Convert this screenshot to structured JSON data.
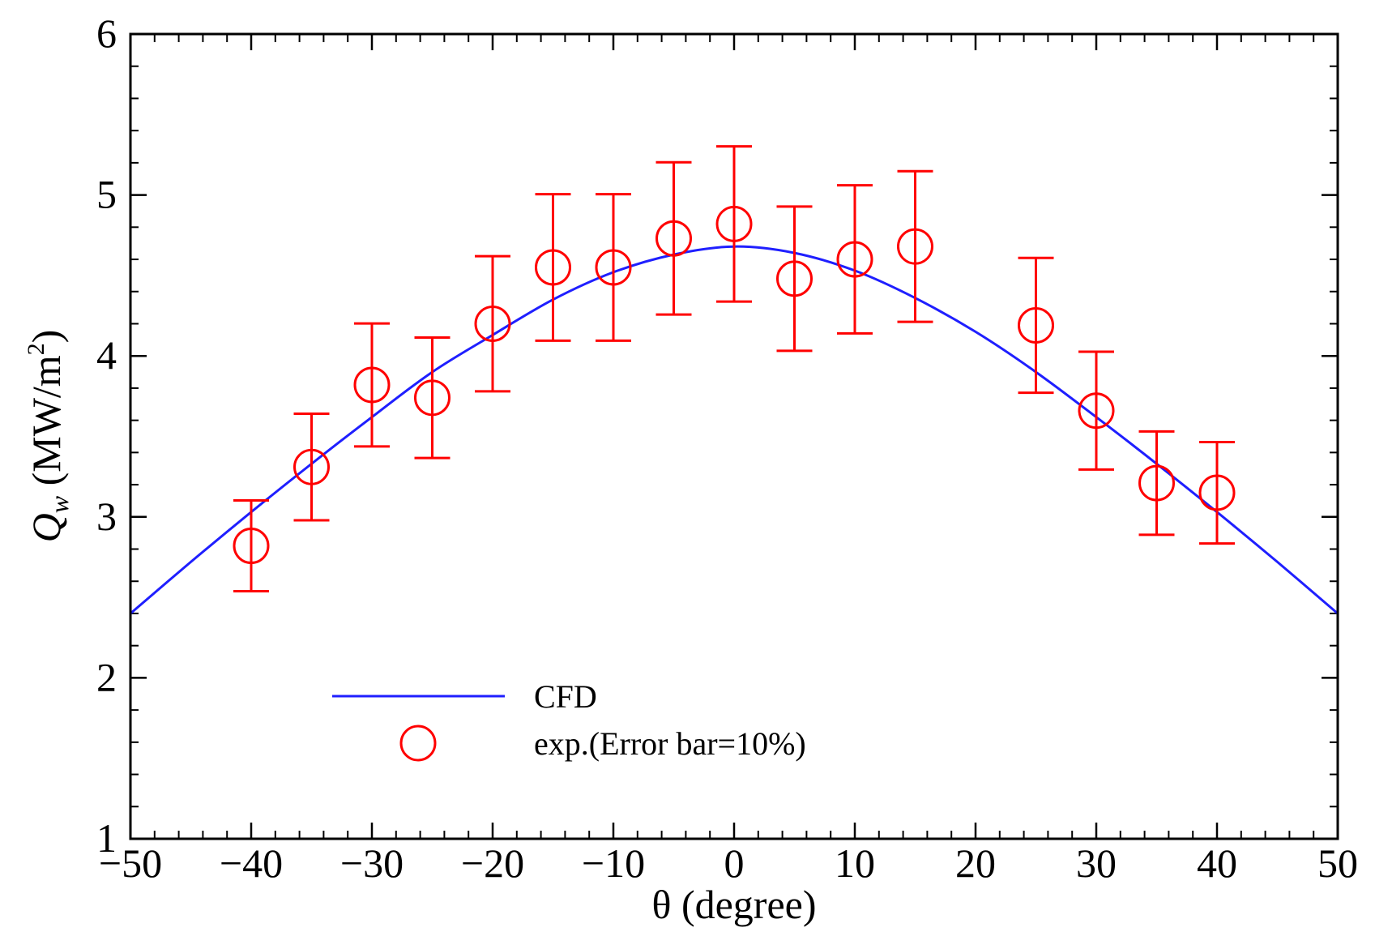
{
  "chart_data": {
    "type": "scatter",
    "title": "",
    "xlabel": "θ (degree)",
    "ylabel_main": "Q",
    "ylabel_sub": "w",
    "ylabel_units": " (MW/m",
    "ylabel_sup": "2",
    "ylabel_close": ")",
    "xlim": [
      -50,
      50
    ],
    "ylim": [
      1,
      6
    ],
    "xticks": [
      -50,
      -40,
      -30,
      -20,
      -10,
      0,
      10,
      20,
      30,
      40,
      50
    ],
    "xtick_labels": [
      "−50",
      "−40",
      "−30",
      "−20",
      "−10",
      "0",
      "10",
      "20",
      "30",
      "40",
      "50"
    ],
    "yticks": [
      1,
      2,
      3,
      4,
      5,
      6
    ],
    "ytick_labels": [
      "1",
      "2",
      "3",
      "4",
      "5",
      "6"
    ],
    "grid": false,
    "legend_position": "bottom-left",
    "series": [
      {
        "name": "CFD",
        "kind": "line",
        "color": "#1f1fff",
        "x": [
          -50,
          -45,
          -40,
          -35,
          -30,
          -25,
          -20,
          -15,
          -10,
          -5,
          0,
          5,
          10,
          15,
          20,
          25,
          30,
          35,
          40,
          45,
          50
        ],
        "y": [
          2.4,
          2.72,
          3.03,
          3.33,
          3.62,
          3.9,
          4.13,
          4.35,
          4.52,
          4.63,
          4.68,
          4.64,
          4.53,
          4.36,
          4.15,
          3.9,
          3.62,
          3.33,
          3.03,
          2.72,
          2.4
        ]
      },
      {
        "name": "exp.(Error bar=10%)",
        "kind": "scatter",
        "color": "#ff0000",
        "error_percent": 10,
        "x": [
          -40,
          -35,
          -30,
          -25,
          -20,
          -15,
          -10,
          -5,
          0,
          5,
          10,
          15,
          25,
          30,
          35,
          40
        ],
        "y": [
          2.82,
          3.31,
          3.82,
          3.74,
          4.2,
          4.55,
          4.55,
          4.73,
          4.82,
          4.48,
          4.6,
          4.68,
          4.19,
          3.66,
          3.21,
          3.15
        ]
      }
    ]
  }
}
